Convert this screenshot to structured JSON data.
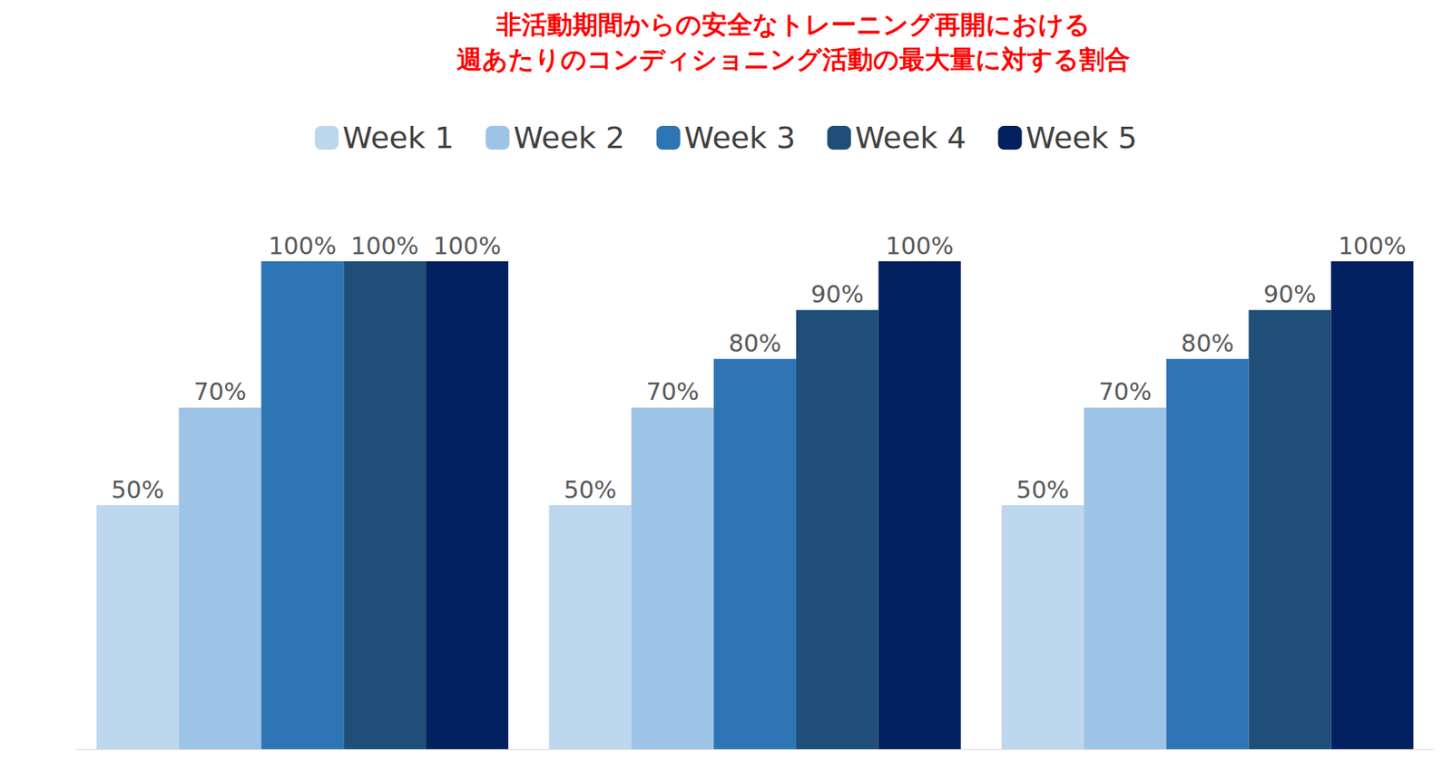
{
  "chart_data": {
    "type": "bar",
    "title": "非活動期間からの安全なトレーニング再開における\n週あたりのコンディショニング活動の最大量に対する割合",
    "categories": [
      null,
      null,
      null
    ],
    "series": [
      {
        "name": "Week 1",
        "color": "#bdd7ee",
        "values": [
          50,
          50,
          50
        ],
        "value_labels": [
          "50%",
          "50%",
          "50%"
        ]
      },
      {
        "name": "Week 2",
        "color": "#9dc3e6",
        "values": [
          70,
          70,
          70
        ],
        "value_labels": [
          "70%",
          "70%",
          "70%"
        ]
      },
      {
        "name": "Week 3",
        "color": "#2e75b6",
        "values": [
          100,
          80,
          80
        ],
        "value_labels": [
          "100%",
          "80%",
          "80%"
        ]
      },
      {
        "name": "Week 4",
        "color": "#1f4e79",
        "values": [
          100,
          90,
          90
        ],
        "value_labels": [
          "100%",
          "90%",
          "90%"
        ]
      },
      {
        "name": "Week 5",
        "color": "#002060",
        "values": [
          100,
          100,
          100
        ],
        "value_labels": [
          "100%",
          "100%",
          "100%"
        ]
      }
    ],
    "ylim": [
      0,
      100
    ],
    "yticks": [
      0,
      100
    ],
    "grid": false,
    "legend": "top",
    "data_labels": true,
    "tick_labels": false
  }
}
